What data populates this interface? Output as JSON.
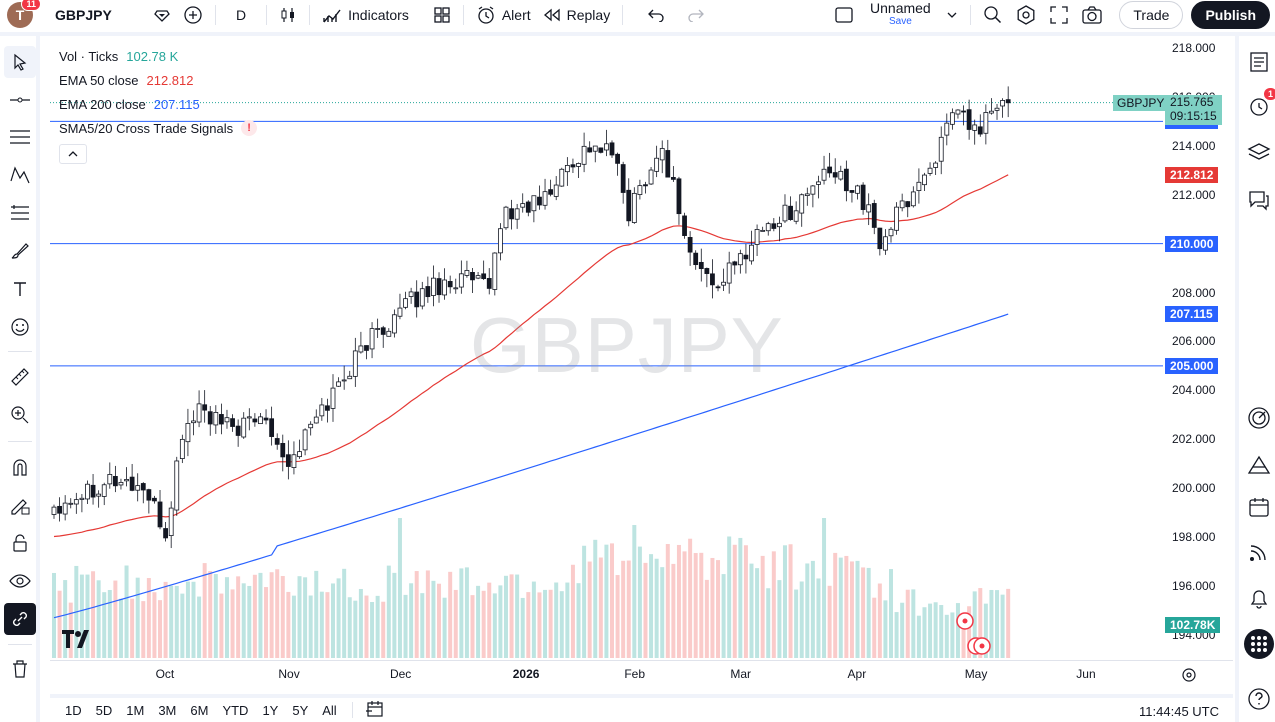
{
  "topbar": {
    "avatar_letter": "T",
    "avatar_badge": "11",
    "symbol": "GBPJPY",
    "interval": "D",
    "indicators_label": "Indicators",
    "alert_label": "Alert",
    "replay_label": "Replay",
    "layout_name": "Unnamed",
    "layout_save": "Save",
    "trade_label": "Trade",
    "publish_label": "Publish"
  },
  "legend": {
    "vol_label": "Vol · Ticks",
    "vol_value": "102.78 K",
    "ema50_label": "EMA 50 close",
    "ema50_value": "212.812",
    "ema200_label": "EMA 200 close",
    "ema200_value": "207.115",
    "sma_label": "SMA5/20 Cross Trade Signals",
    "sma_warn": "!"
  },
  "watermark": "GBPJPY",
  "colors": {
    "up": "#26a69a",
    "down": "#ef5350",
    "ema50": "#e53935",
    "ema200": "#2962ff",
    "hline": "#2962ff",
    "current_price": "#26a69a"
  },
  "price_scale": {
    "ticks": [
      "218.000",
      "216.000",
      "214.000",
      "212.000",
      "210.000",
      "208.000",
      "206.000",
      "204.000",
      "202.000",
      "200.000",
      "198.000",
      "196.000",
      "194.000"
    ],
    "labels": [
      {
        "text": "215.000",
        "color": "#2962ff",
        "price": 215.0
      },
      {
        "text": "212.812",
        "color": "#e53935",
        "price": 212.812
      },
      {
        "text": "210.000",
        "color": "#2962ff",
        "price": 210.0
      },
      {
        "text": "207.115",
        "color": "#2962ff",
        "price": 207.115
      },
      {
        "text": "205.000",
        "color": "#2962ff",
        "price": 205.0
      }
    ],
    "current_symbol": "GBPJPY",
    "current_price": "215.765",
    "countdown": "09:15:15",
    "volume_label": "102.78K"
  },
  "chart_data": {
    "type": "candlestick",
    "symbol": "GBPJPY",
    "ylim": [
      193.5,
      219.0
    ],
    "horizontal_lines": [
      215.0,
      210.0,
      205.0
    ],
    "x_labels": [
      "Oct",
      "Nov",
      "Dec",
      "2026",
      "Feb",
      "Mar",
      "Apr",
      "May",
      "Jun"
    ],
    "last_close": 215.765,
    "ema50_last": 212.812,
    "ema200_last": 207.115
  },
  "time_scale": {
    "labels": [
      {
        "text": "Oct",
        "idx": 20
      },
      {
        "text": "Nov",
        "idx": 42
      },
      {
        "text": "Dec",
        "idx": 62
      },
      {
        "text": "2026",
        "idx": 84
      },
      {
        "text": "Feb",
        "idx": 104
      },
      {
        "text": "Mar",
        "idx": 123
      },
      {
        "text": "Apr",
        "idx": 144
      },
      {
        "text": "May",
        "idx": 165
      },
      {
        "text": "Jun",
        "idx": 185
      }
    ]
  },
  "bottom": {
    "ranges": [
      "1D",
      "5D",
      "1M",
      "3M",
      "6M",
      "YTD",
      "1Y",
      "5Y",
      "All"
    ],
    "clock": "11:44:45 UTC"
  }
}
